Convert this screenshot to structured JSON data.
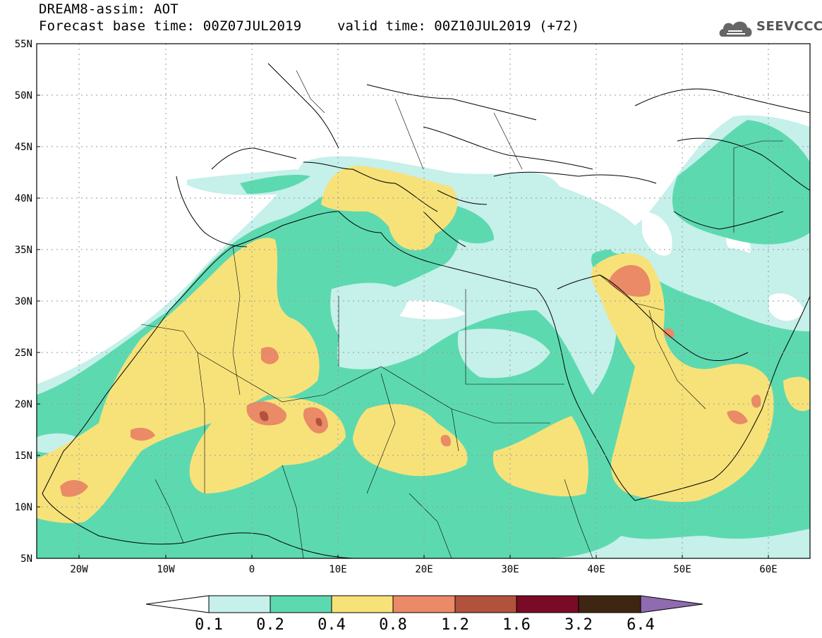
{
  "title": {
    "line1": "DREAM8-assim: AOT",
    "line2": "Forecast base time: 00Z07JUL2019",
    "valid": "valid time: 00Z10JUL2019 (+72)"
  },
  "logo": {
    "text": "SEEVCCC",
    "icon": "cloud-icon"
  },
  "axes": {
    "lat_labels": [
      "55N",
      "50N",
      "45N",
      "40N",
      "35N",
      "30N",
      "25N",
      "20N",
      "15N",
      "10N",
      "5N"
    ],
    "lon_labels": [
      "20W",
      "10W",
      "0",
      "10E",
      "20E",
      "30E",
      "40E",
      "50E",
      "60E"
    ],
    "lon_range": [
      -25,
      65
    ],
    "lat_range": [
      5,
      55
    ]
  },
  "colorbar": {
    "labels": [
      "0.1",
      "0.2",
      "0.4",
      "0.8",
      "1.2",
      "1.6",
      "3.2",
      "6.4"
    ],
    "colors": [
      "#c6f0ea",
      "#5dd9b0",
      "#f7e27a",
      "#ea8a66",
      "#b2523c",
      "#7a0a25",
      "#3e2612",
      "#8f6bb0"
    ]
  },
  "field_colors": {
    "bg": "#ffffff",
    "l1": "#c6f0ea",
    "l2": "#5dd9b0",
    "l3": "#f7e27a",
    "l4": "#ea8a66",
    "l5": "#b2523c"
  }
}
